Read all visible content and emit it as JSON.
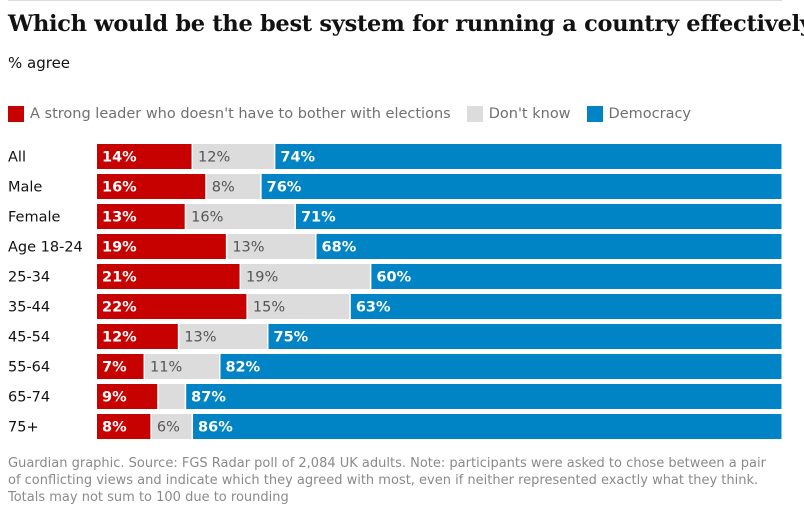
{
  "title": "Which would be the best system for running a country effectively?",
  "subtitle": "% agree",
  "legend": [
    {
      "label": "A strong leader who doesn't have to bother with elections",
      "color": "#c70000"
    },
    {
      "label": "Don't know",
      "color": "#dcdcdc"
    },
    {
      "label": "Democracy",
      "color": "#0084c6"
    }
  ],
  "source": "Guardian graphic. Source: FGS Radar poll of 2,084 UK adults. Note: participants were asked to chose between a pair of conflicting views and indicate which they agreed with most, even if neither represented exactly what they think. Totals may not sum to 100 due to rounding",
  "chart_data": {
    "type": "bar",
    "orientation": "horizontal",
    "stacked": true,
    "xlim": [
      0,
      100
    ],
    "categories": [
      "All",
      "Male",
      "Female",
      "Age 18-24",
      "25-34",
      "35-44",
      "45-54",
      "55-64",
      "65-74",
      "75+"
    ],
    "series": [
      {
        "name": "A strong leader who doesn't have to bother with elections",
        "color": "#c70000",
        "values": [
          14,
          16,
          13,
          19,
          21,
          22,
          12,
          7,
          9,
          8
        ],
        "labels": [
          "14%",
          "16%",
          "13%",
          "19%",
          "21%",
          "22%",
          "12%",
          "7%",
          "9%",
          "8%"
        ]
      },
      {
        "name": "Don't know",
        "color": "#dcdcdc",
        "values": [
          12,
          8,
          16,
          13,
          19,
          15,
          13,
          11,
          4,
          6
        ],
        "labels": [
          "12%",
          "8%",
          "16%",
          "13%",
          "19%",
          "15%",
          "13%",
          "11%",
          "",
          "6%"
        ]
      },
      {
        "name": "Democracy",
        "color": "#0084c6",
        "values": [
          74,
          76,
          71,
          68,
          60,
          63,
          75,
          82,
          87,
          86
        ],
        "labels": [
          "74%",
          "76%",
          "71%",
          "68%",
          "60%",
          "63%",
          "75%",
          "82%",
          "87%",
          "86%"
        ]
      }
    ]
  }
}
